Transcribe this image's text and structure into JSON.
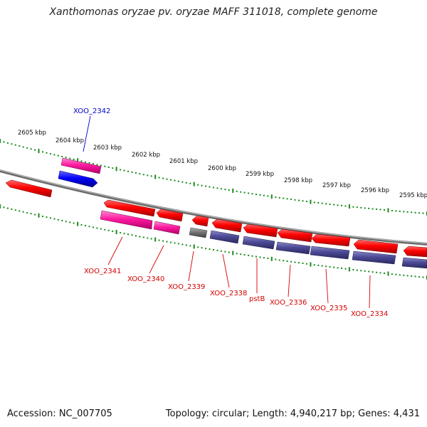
{
  "title": "Xanthomonas oryzae pv. oryzae MAFF 311018, complete genome",
  "footer": {
    "accession": "Accession: NC_007705",
    "summary": "Topology: circular; Length: 4,940,217 bp; Genes: 4,431"
  },
  "colors": {
    "backbone": "#808080",
    "tick": "#1a8a1a",
    "forward_gene": "#ff0000",
    "cds_magenta": "#ff1aa0",
    "cds_slate": "#4c4a96",
    "cds_gray": "#7a7a7a",
    "blue_gene": "#0000ff",
    "label_red": "#d40000",
    "label_blue": "#0000cc"
  },
  "kbp_labels": [
    "2605 kbp",
    "2604 kbp",
    "2603 kbp",
    "2602 kbp",
    "2601 kbp",
    "2600 kbp",
    "2599 kbp",
    "2598 kbp",
    "2597 kbp",
    "2596 kbp",
    "2595 kbp"
  ],
  "gene_labels_bottom": [
    "XOO_2341",
    "XOO_2340",
    "XOO_2339",
    "XOO_2338",
    "pstB",
    "XOO_2336",
    "XOO_2335",
    "XOO_2334"
  ],
  "gene_label_top": "XOO_2342"
}
